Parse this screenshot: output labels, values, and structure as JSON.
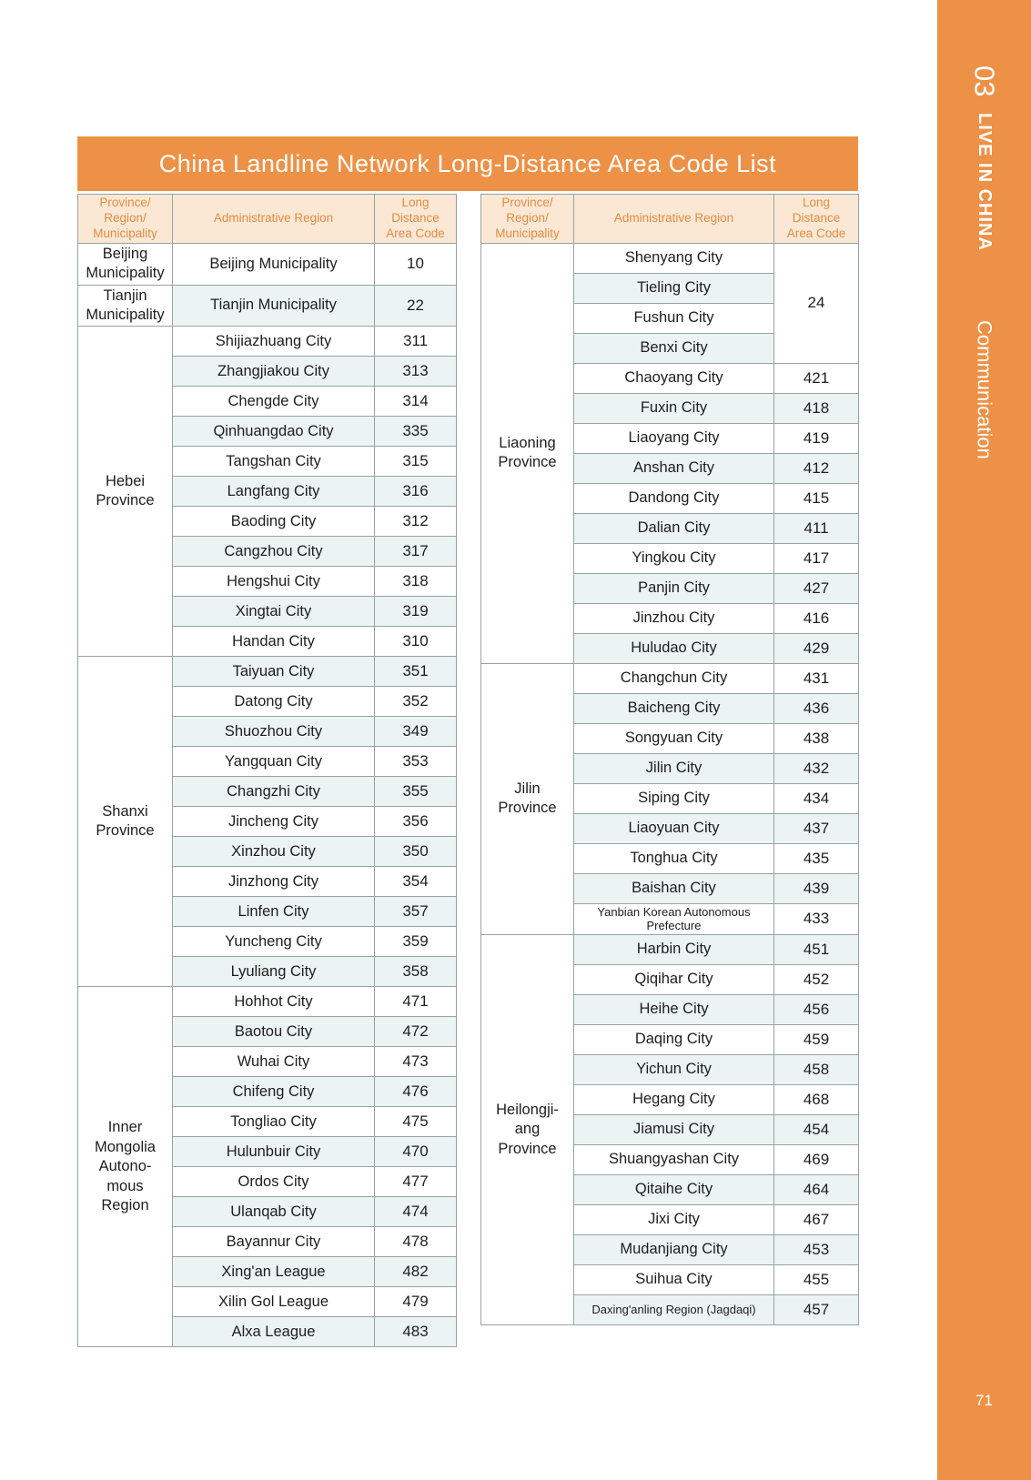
{
  "title": "China Landline Network Long-Distance Area Code List",
  "sidebar": {
    "chapter_number": "03",
    "chapter_title": "LIVE IN CHINA",
    "section_title": "Communication",
    "page_number": "71"
  },
  "columns": {
    "province": "Province/\nRegion/\nMunicipality",
    "region": "Administrative Region",
    "code": "Long\nDistance\nArea Code"
  },
  "colors": {
    "accent_orange": "#ED9147",
    "header_bg": "#FBE8D4",
    "header_text": "#E28B45",
    "row_alt": "#EBF4F2",
    "border": "#97A3A3"
  },
  "tables": {
    "left": {
      "groups": [
        {
          "province": "Beijing\nMunicipality",
          "rows": [
            {
              "region": "Beijing Municipality",
              "code": "10",
              "tall": true
            }
          ]
        },
        {
          "province": "Tianjin\nMunicipality",
          "rows": [
            {
              "region": "Tianjin Municipality",
              "code": "22",
              "tall": true
            }
          ]
        },
        {
          "province": "Hebei\nProvince",
          "rows": [
            {
              "region": "Shijiazhuang City",
              "code": "311"
            },
            {
              "region": "Zhangjiakou City",
              "code": "313"
            },
            {
              "region": "Chengde City",
              "code": "314"
            },
            {
              "region": "Qinhuangdao City",
              "code": "335"
            },
            {
              "region": "Tangshan City",
              "code": "315"
            },
            {
              "region": "Langfang City",
              "code": "316"
            },
            {
              "region": "Baoding City",
              "code": "312"
            },
            {
              "region": "Cangzhou City",
              "code": "317"
            },
            {
              "region": "Hengshui City",
              "code": "318"
            },
            {
              "region": "Xingtai City",
              "code": "319"
            },
            {
              "region": "Handan City",
              "code": "310"
            }
          ]
        },
        {
          "province": "Shanxi\nProvince",
          "rows": [
            {
              "region": "Taiyuan City",
              "code": "351"
            },
            {
              "region": "Datong City",
              "code": "352"
            },
            {
              "region": "Shuozhou City",
              "code": "349"
            },
            {
              "region": "Yangquan City",
              "code": "353"
            },
            {
              "region": "Changzhi City",
              "code": "355"
            },
            {
              "region": "Jincheng City",
              "code": "356"
            },
            {
              "region": "Xinzhou City",
              "code": "350"
            },
            {
              "region": "Jinzhong City",
              "code": "354"
            },
            {
              "region": "Linfen City",
              "code": "357"
            },
            {
              "region": "Yuncheng City",
              "code": "359"
            },
            {
              "region": "Lyuliang City",
              "code": "358"
            }
          ]
        },
        {
          "province": "Inner\nMongolia\nAutono-\nmous\nRegion",
          "rows": [
            {
              "region": "Hohhot City",
              "code": "471"
            },
            {
              "region": "Baotou City",
              "code": "472"
            },
            {
              "region": "Wuhai City",
              "code": "473"
            },
            {
              "region": "Chifeng City",
              "code": "476"
            },
            {
              "region": "Tongliao City",
              "code": "475"
            },
            {
              "region": "Hulunbuir City",
              "code": "470"
            },
            {
              "region": "Ordos City",
              "code": "477"
            },
            {
              "region": "Ulanqab City",
              "code": "474"
            },
            {
              "region": "Bayannur City",
              "code": "478"
            },
            {
              "region": "Xing'an League",
              "code": "482"
            },
            {
              "region": "Xilin Gol League",
              "code": "479"
            },
            {
              "region": "Alxa League",
              "code": "483"
            }
          ]
        }
      ]
    },
    "right": {
      "groups": [
        {
          "province": "Liaoning\nProvince",
          "rows": [
            {
              "region": "Shenyang City",
              "code": "24",
              "span": 4
            },
            {
              "region": "Tieling City"
            },
            {
              "region": "Fushun City"
            },
            {
              "region": "Benxi City"
            },
            {
              "region": "Chaoyang City",
              "code": "421"
            },
            {
              "region": "Fuxin City",
              "code": "418"
            },
            {
              "region": "Liaoyang City",
              "code": "419"
            },
            {
              "region": "Anshan City",
              "code": "412"
            },
            {
              "region": "Dandong City",
              "code": "415"
            },
            {
              "region": "Dalian City",
              "code": "411"
            },
            {
              "region": "Yingkou City",
              "code": "417"
            },
            {
              "region": "Panjin City",
              "code": "427"
            },
            {
              "region": "Jinzhou City",
              "code": "416"
            },
            {
              "region": "Huludao City",
              "code": "429"
            }
          ]
        },
        {
          "province": "Jilin\nProvince",
          "rows": [
            {
              "region": "Changchun City",
              "code": "431"
            },
            {
              "region": "Baicheng City",
              "code": "436"
            },
            {
              "region": "Songyuan City",
              "code": "438"
            },
            {
              "region": "Jilin City",
              "code": "432"
            },
            {
              "region": "Siping City",
              "code": "434"
            },
            {
              "region": "Liaoyuan City",
              "code": "437"
            },
            {
              "region": "Tonghua City",
              "code": "435"
            },
            {
              "region": "Baishan City",
              "code": "439"
            },
            {
              "region": "Yanbian Korean Autonomous Prefecture",
              "code": "433",
              "small": true
            }
          ]
        },
        {
          "province": "Heilongji-\nang\nProvince",
          "rows": [
            {
              "region": "Harbin City",
              "code": "451"
            },
            {
              "region": "Qiqihar City",
              "code": "452"
            },
            {
              "region": "Heihe City",
              "code": "456"
            },
            {
              "region": "Daqing City",
              "code": "459"
            },
            {
              "region": "Yichun City",
              "code": "458"
            },
            {
              "region": "Hegang City",
              "code": "468"
            },
            {
              "region": "Jiamusi City",
              "code": "454"
            },
            {
              "region": "Shuangyashan City",
              "code": "469"
            },
            {
              "region": "Qitaihe City",
              "code": "464"
            },
            {
              "region": "Jixi City",
              "code": "467"
            },
            {
              "region": "Mudanjiang City",
              "code": "453"
            },
            {
              "region": "Suihua City",
              "code": "455"
            },
            {
              "region": "Daxing'anling Region (Jagdaqi)",
              "code": "457",
              "small": true
            }
          ]
        }
      ]
    }
  }
}
